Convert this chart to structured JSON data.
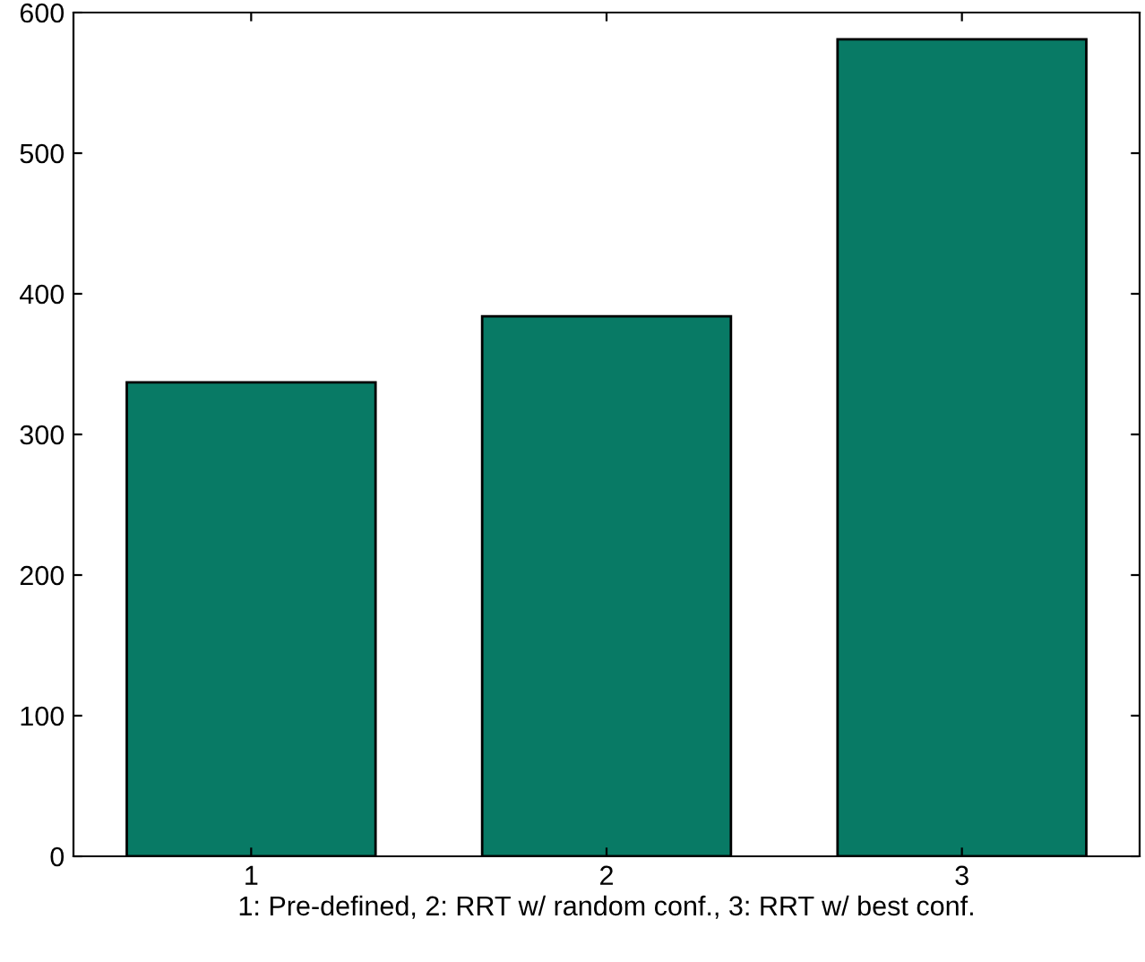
{
  "chart_data": {
    "type": "bar",
    "xlabel": "1: Pre-defined, 2: RRT w/ random conf., 3: RRT w/ best conf.",
    "categories": [
      "1",
      "2",
      "3"
    ],
    "values": [
      337,
      384,
      581
    ],
    "color": "#087a65",
    "ylim": [
      0,
      600
    ],
    "yticks": [
      0,
      100,
      200,
      300,
      400,
      500,
      600
    ],
    "grid": false
  }
}
